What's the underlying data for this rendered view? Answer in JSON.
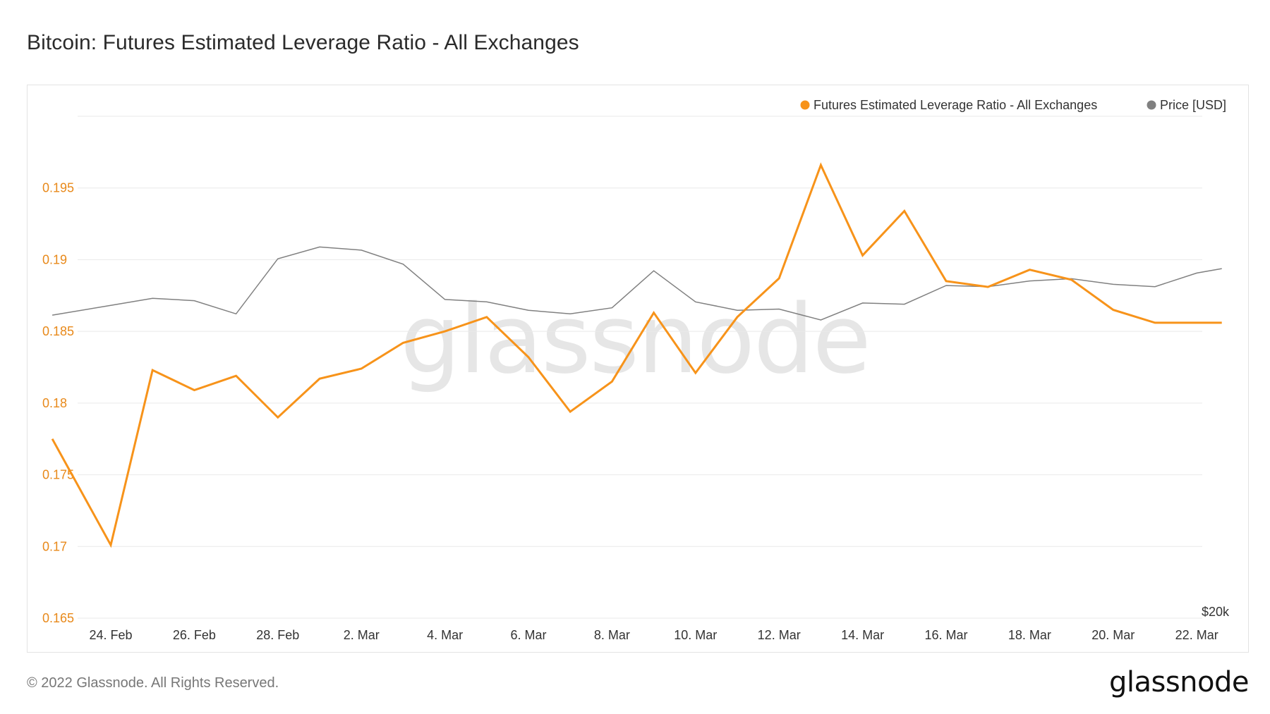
{
  "page": {
    "title": "Bitcoin: Futures Estimated Leverage Ratio - All Exchanges",
    "footer_copyright": "© 2022 Glassnode. All Rights Reserved.",
    "footer_logo": "glassnode",
    "watermark": "glassnode"
  },
  "colors": {
    "leverage_series": "#f7931a",
    "price_series": "#808080",
    "left_axis_text": "#e8891a",
    "grid": "#e9e9e9",
    "axis_text": "#333333"
  },
  "chart_data": {
    "type": "line",
    "title": "Bitcoin: Futures Estimated Leverage Ratio - All Exchanges",
    "xlabel": "",
    "ylabel": "",
    "x": [
      "23. Feb",
      "24. Feb",
      "25. Feb",
      "26. Feb",
      "27. Feb",
      "28. Feb",
      "1. Mar",
      "2. Mar",
      "3. Mar",
      "4. Mar",
      "5. Mar",
      "6. Mar",
      "7. Mar",
      "8. Mar",
      "9. Mar",
      "10. Mar",
      "11. Mar",
      "12. Mar",
      "13. Mar",
      "14. Mar",
      "15. Mar",
      "16. Mar",
      "17. Mar",
      "18. Mar",
      "19. Mar",
      "20. Mar",
      "21. Mar",
      "22. Mar"
    ],
    "x_ticks": [
      "24. Feb",
      "26. Feb",
      "28. Feb",
      "2. Mar",
      "4. Mar",
      "6. Mar",
      "8. Mar",
      "10. Mar",
      "12. Mar",
      "14. Mar",
      "16. Mar",
      "18. Mar",
      "20. Mar",
      "22. Mar"
    ],
    "legend": [
      "Futures Estimated Leverage Ratio - All Exchanges",
      "Price [USD]"
    ],
    "legend_position": "top-right",
    "y_left": {
      "ticks": [
        "0.165",
        "0.17",
        "0.175",
        "0.18",
        "0.185",
        "0.19",
        "0.195"
      ],
      "ylim": [
        0.165,
        0.2
      ]
    },
    "y_right": {
      "ticks": [
        "$20k"
      ],
      "scale": "log",
      "ylim": [
        20000,
        50000
      ]
    },
    "series": [
      {
        "name": "Futures Estimated Leverage Ratio - All Exchanges",
        "axis": "left",
        "x": [
          22.6,
          24,
          25,
          26,
          27,
          28,
          29,
          30,
          31,
          32,
          33,
          34,
          35,
          36,
          37,
          38,
          39,
          40,
          41,
          42,
          43,
          44,
          45,
          46,
          47,
          48,
          49,
          50,
          50.6
        ],
        "values": [
          0.1775,
          0.1701,
          0.1823,
          0.1809,
          0.1819,
          0.179,
          0.1817,
          0.1824,
          0.1842,
          0.185,
          0.186,
          0.1832,
          0.1794,
          0.1815,
          0.1863,
          0.1821,
          0.186,
          0.1887,
          0.1966,
          0.1903,
          0.1934,
          0.1885,
          0.1881,
          0.1893,
          0.1886,
          0.1865,
          0.1856,
          0.1856,
          0.1856
        ]
      },
      {
        "name": "Price [USD]",
        "axis": "right",
        "x": [
          22.6,
          24,
          25,
          26,
          27,
          28,
          29,
          30,
          31,
          32,
          33,
          34,
          35,
          36,
          37,
          38,
          39,
          40,
          41,
          42,
          43,
          44,
          45,
          46,
          47,
          48,
          49,
          50,
          50.6
        ],
        "values": [
          38300,
          39100,
          39700,
          39500,
          38400,
          43200,
          44300,
          44000,
          42700,
          39600,
          39400,
          38700,
          38400,
          38900,
          42100,
          39400,
          38700,
          38800,
          37900,
          39300,
          39200,
          40800,
          40700,
          41200,
          41400,
          40900,
          40700,
          41900,
          42300
        ]
      }
    ]
  }
}
